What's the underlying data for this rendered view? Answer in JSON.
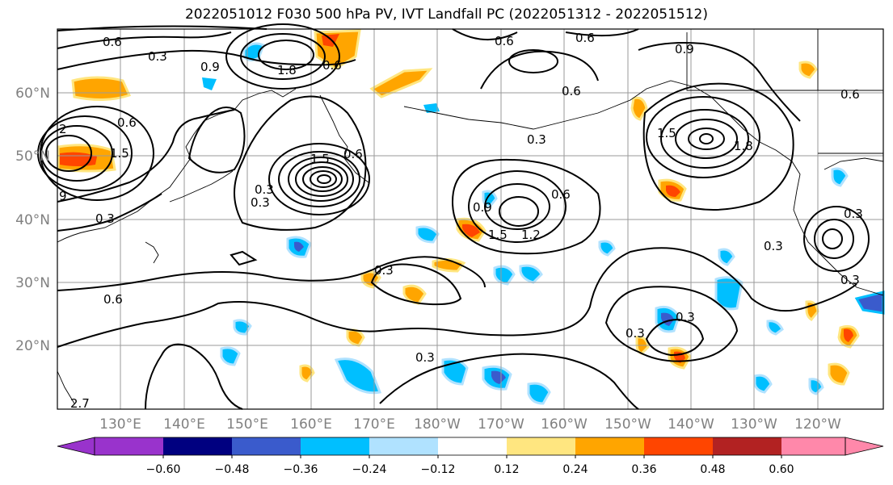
{
  "title": "2022051012 F030 500 hPa PV, IVT Landfall PC (2022051312 - 2022051512)",
  "lat_labels": [
    "60°N",
    "50°N",
    "40°N",
    "30°N",
    "20°N"
  ],
  "lon_labels": [
    "130°E",
    "140°E",
    "150°E",
    "160°E",
    "170°E",
    "180°W",
    "170°W",
    "160°W",
    "150°W",
    "140°W",
    "130°W",
    "120°W"
  ],
  "colorbar": {
    "tick_labels": [
      "−0.60",
      "−0.48",
      "−0.36",
      "−0.24",
      "−0.12",
      "0.12",
      "0.24",
      "0.36",
      "0.48",
      "0.60"
    ],
    "colors": [
      "#9933cc",
      "#000080",
      "#3a5bcc",
      "#00bfff",
      "#b0e2ff",
      "#ffffff",
      "#ffe680",
      "#ffa500",
      "#ff4500",
      "#b22222",
      "#ff88aa"
    ]
  },
  "contour_labels": [
    "0.6",
    "0.3",
    "0.9",
    "1.8",
    "0.6",
    "2",
    "1.5",
    "9",
    "0.6",
    "0.3",
    "0.6",
    "0.6",
    "0.6",
    "0.9",
    "0.6",
    "1.5",
    "1.8",
    "0.3",
    "0.6",
    "1.5",
    "1.5",
    "1.2",
    "0.3",
    "0.9",
    "0.3",
    "0.6",
    "0.3",
    "0.3",
    "0.3",
    "0.3",
    "0.3",
    "0.3",
    "0.6",
    "0.3",
    "2.7"
  ]
}
